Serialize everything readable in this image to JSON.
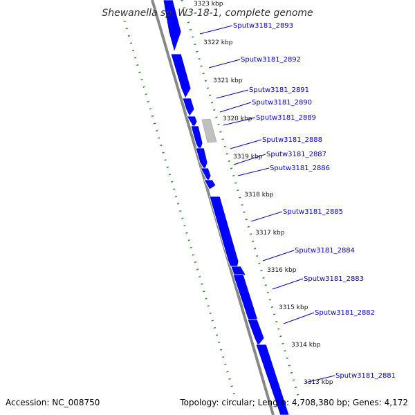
{
  "title": "Shewanella sp. W3-18-1, complete genome",
  "footer": {
    "accession": "Accession: NC_008750",
    "summary": "Topology: circular; Length: 4,708,380 bp; Genes: 4,172"
  },
  "colors": {
    "gene": "#0000ff",
    "gene_label": "#0000cc",
    "backbone": "#888888",
    "dotted": "#2a8a2a",
    "misc_feature": "#c0c0c0"
  },
  "kbp_ticks": [
    "3323 kbp",
    "3322 kbp",
    "3321 kbp",
    "3320 kbp",
    "3319 kbp",
    "3318 kbp",
    "3317 kbp",
    "3316 kbp",
    "3315 kbp",
    "3314 kbp",
    "3313 kbp"
  ],
  "genes": [
    "Sputw3181_2893",
    "Sputw3181_2892",
    "Sputw3181_2891",
    "Sputw3181_2890",
    "Sputw3181_2889",
    "Sputw3181_2888",
    "Sputw3181_2887",
    "Sputw3181_2886",
    "Sputw3181_2885",
    "Sputw3181_2884",
    "Sputw3181_2883",
    "Sputw3181_2882",
    "Sputw3181_2881"
  ]
}
